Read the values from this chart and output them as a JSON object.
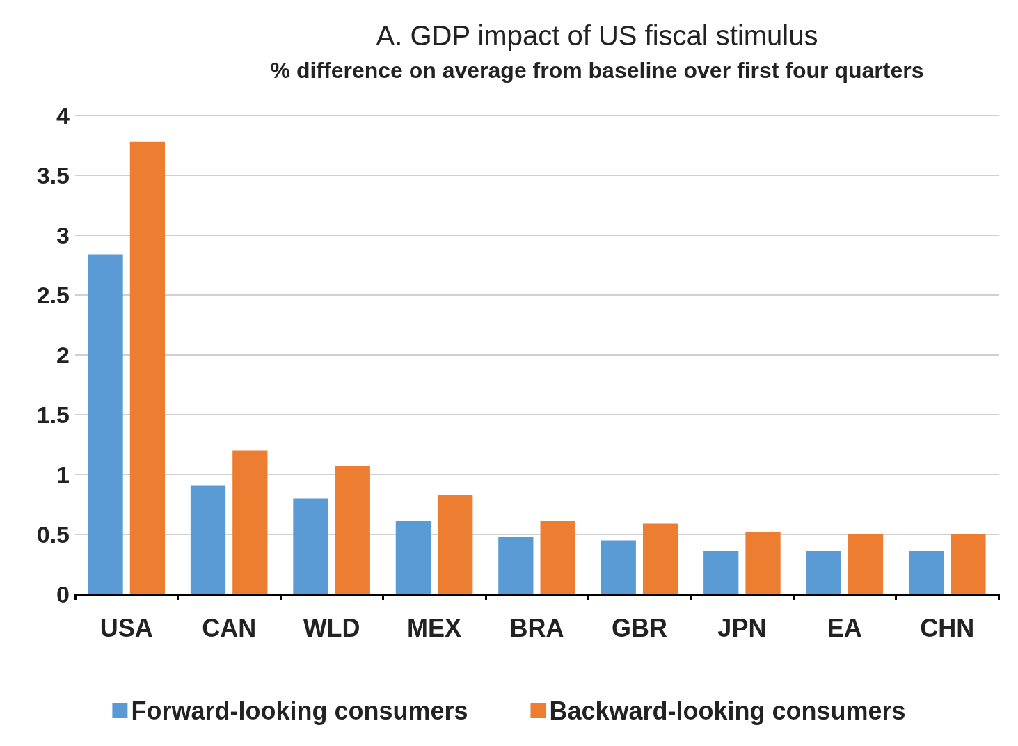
{
  "chart_data": {
    "type": "bar",
    "title": "A. GDP impact of US fiscal stimulus",
    "subtitle": "% difference on average from baseline over first four quarters",
    "categories": [
      "USA",
      "CAN",
      "WLD",
      "MEX",
      "BRA",
      "GBR",
      "JPN",
      "EA",
      "CHN"
    ],
    "series": [
      {
        "name": "Forward-looking consumers",
        "color": "#5b9bd5",
        "values": [
          2.84,
          0.91,
          0.8,
          0.61,
          0.48,
          0.45,
          0.36,
          0.36,
          0.36
        ]
      },
      {
        "name": "Backward-looking consumers",
        "color": "#ed7d31",
        "values": [
          3.78,
          1.2,
          1.07,
          0.83,
          0.61,
          0.59,
          0.52,
          0.5,
          0.5
        ]
      }
    ],
    "ylim": [
      0,
      4
    ],
    "yticks": [
      0,
      0.5,
      1,
      1.5,
      2,
      2.5,
      3,
      3.5,
      4
    ],
    "grid": "y",
    "legend": "bottom"
  }
}
